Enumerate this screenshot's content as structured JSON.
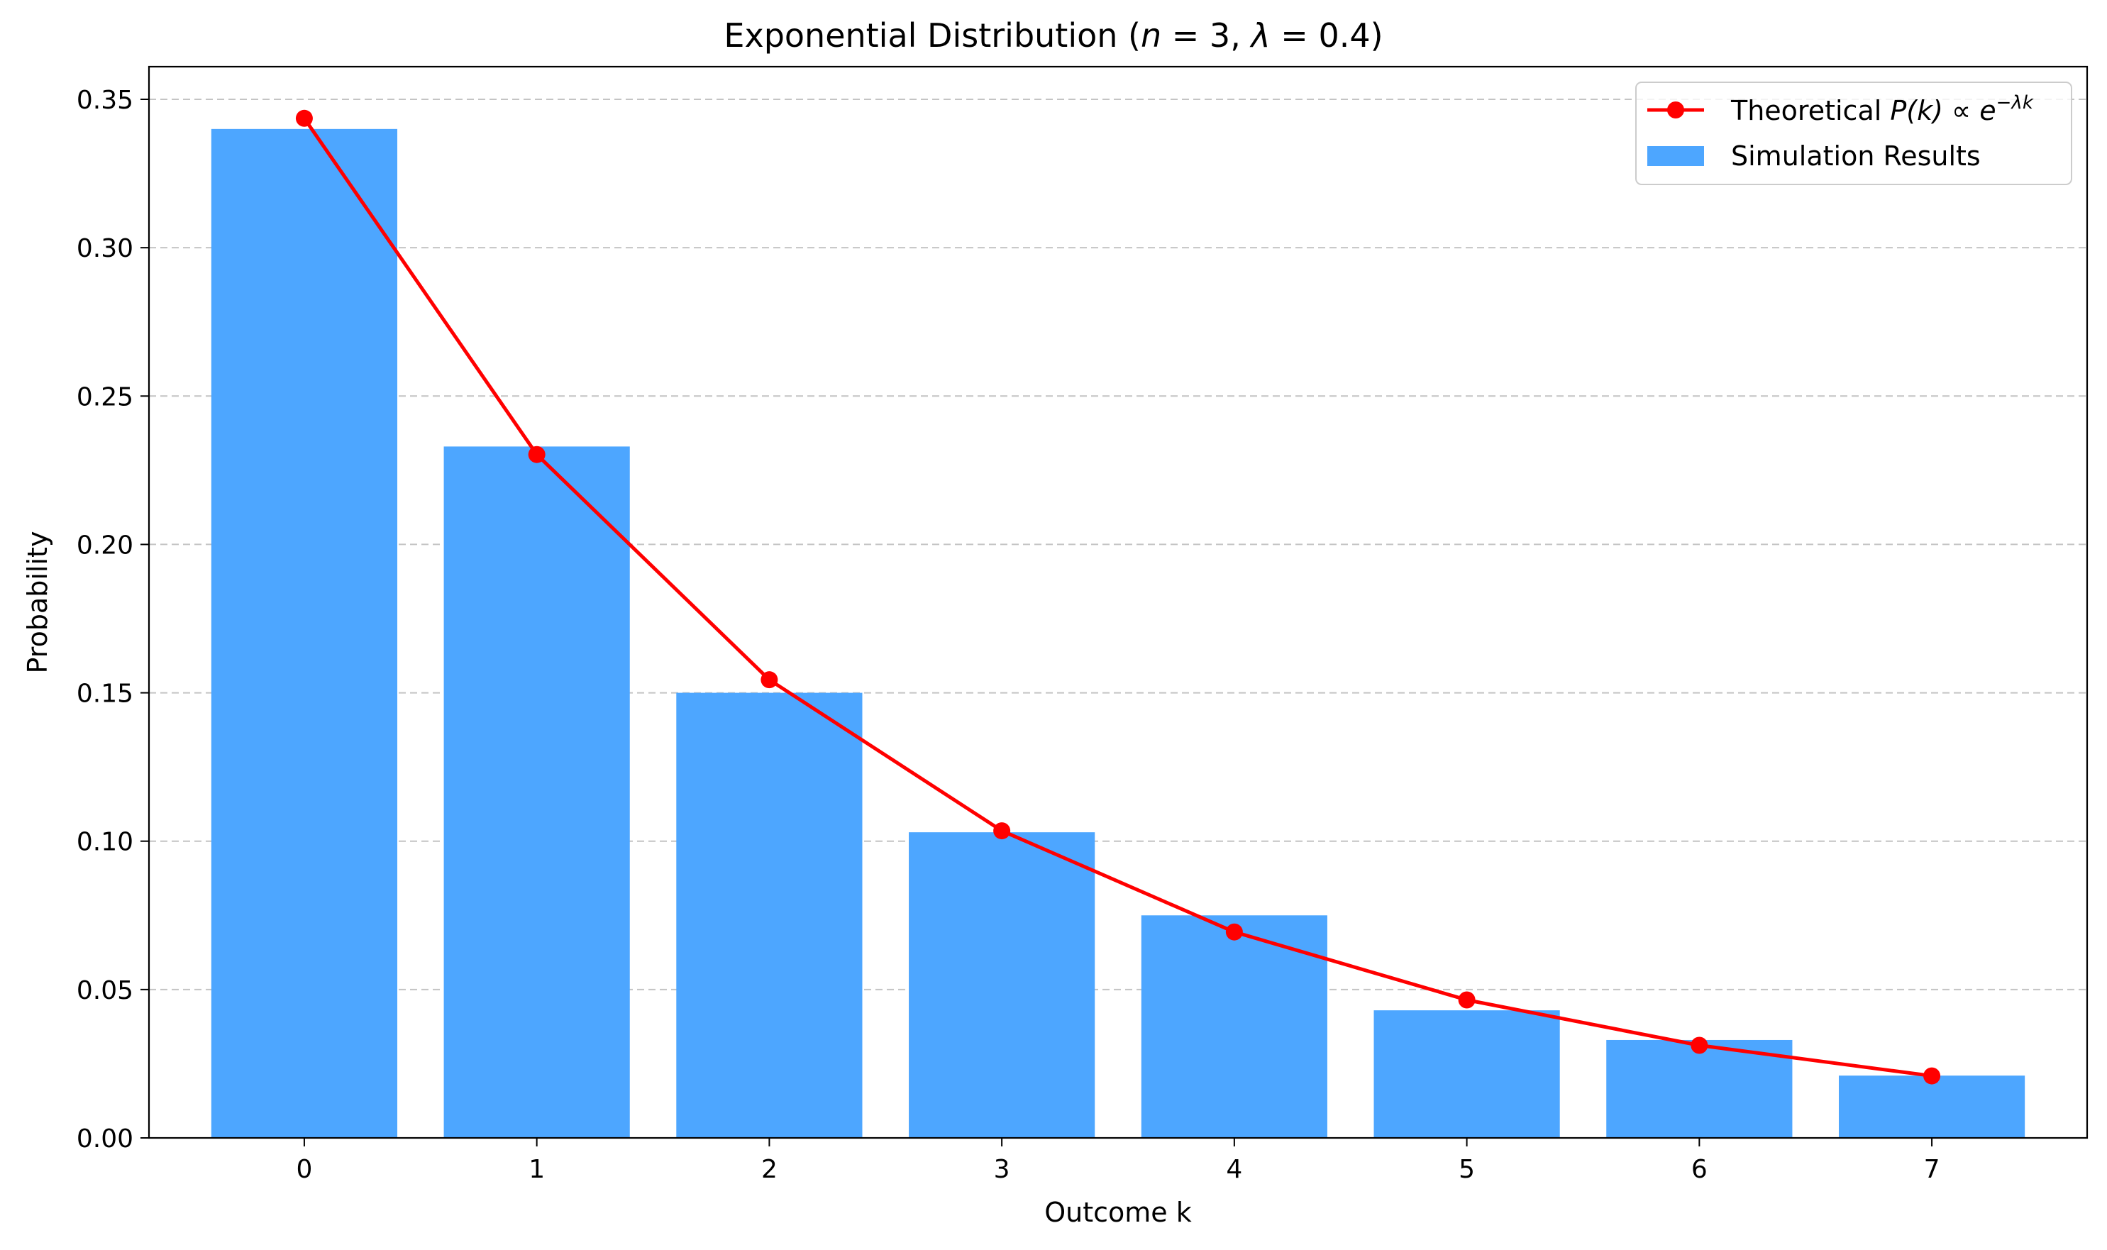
{
  "chart_data": {
    "type": "bar",
    "title_prefix": "Exponential Distribution (",
    "title_n": "n",
    "title_eq1": " = 3, ",
    "title_lambda": "λ",
    "title_eq2": " = 0.4)",
    "xlabel": "Outcome k",
    "ylabel": "Probability",
    "categories": [
      0,
      1,
      2,
      3,
      4,
      5,
      6,
      7
    ],
    "ylim": [
      0,
      0.361
    ],
    "yticks": [
      "0.00",
      "0.05",
      "0.10",
      "0.15",
      "0.20",
      "0.25",
      "0.30",
      "0.35"
    ],
    "grid": "y-dashed",
    "legend_placement": "top-right",
    "series": [
      {
        "name": "Simulation Results",
        "kind": "bar",
        "color": "#4da6ff",
        "values": [
          0.34,
          0.233,
          0.15,
          0.103,
          0.075,
          0.043,
          0.033,
          0.021
        ]
      },
      {
        "name": "Theoretical P(k) ∝ e^{−λk}",
        "kind": "line",
        "color": "#ff0000",
        "values": [
          0.3436,
          0.2303,
          0.1544,
          0.1035,
          0.0694,
          0.0465,
          0.0312,
          0.0209
        ]
      }
    ],
    "legend": {
      "theoretical_prefix": "Theoretical ",
      "theoretical_math": "P(k) ∝ e",
      "theoretical_sup": "−λk",
      "simulation": "Simulation Results"
    }
  }
}
